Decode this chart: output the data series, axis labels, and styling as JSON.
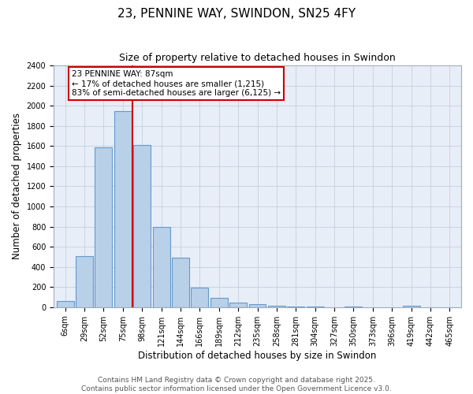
{
  "title1": "23, PENNINE WAY, SWINDON, SN25 4FY",
  "title2": "Size of property relative to detached houses in Swindon",
  "xlabel": "Distribution of detached houses by size in Swindon",
  "ylabel": "Number of detached properties",
  "bar_labels": [
    "6sqm",
    "29sqm",
    "52sqm",
    "75sqm",
    "98sqm",
    "121sqm",
    "144sqm",
    "166sqm",
    "189sqm",
    "212sqm",
    "235sqm",
    "258sqm",
    "281sqm",
    "304sqm",
    "327sqm",
    "350sqm",
    "373sqm",
    "396sqm",
    "419sqm",
    "442sqm",
    "465sqm"
  ],
  "bar_values": [
    60,
    510,
    1590,
    1950,
    1610,
    800,
    490,
    195,
    90,
    45,
    30,
    15,
    10,
    8,
    0,
    5,
    0,
    0,
    15,
    0,
    0
  ],
  "bar_color": "#b8d0e8",
  "bar_edge_color": "#6699cc",
  "vline_x": 3.5,
  "vline_color": "#cc0000",
  "annotation_text": "23 PENNINE WAY: 87sqm\n← 17% of detached houses are smaller (1,215)\n83% of semi-detached houses are larger (6,125) →",
  "annotation_box_color": "#ffffff",
  "annotation_box_edge": "#cc0000",
  "ylim": [
    0,
    2400
  ],
  "yticks": [
    0,
    200,
    400,
    600,
    800,
    1000,
    1200,
    1400,
    1600,
    1800,
    2000,
    2200,
    2400
  ],
  "bg_color": "#e8eef8",
  "footer_text": "Contains HM Land Registry data © Crown copyright and database right 2025.\nContains public sector information licensed under the Open Government Licence v3.0.",
  "title1_fontsize": 11,
  "title2_fontsize": 9,
  "axis_label_fontsize": 8.5,
  "tick_fontsize": 7,
  "annotation_fontsize": 7.5,
  "footer_fontsize": 6.5
}
